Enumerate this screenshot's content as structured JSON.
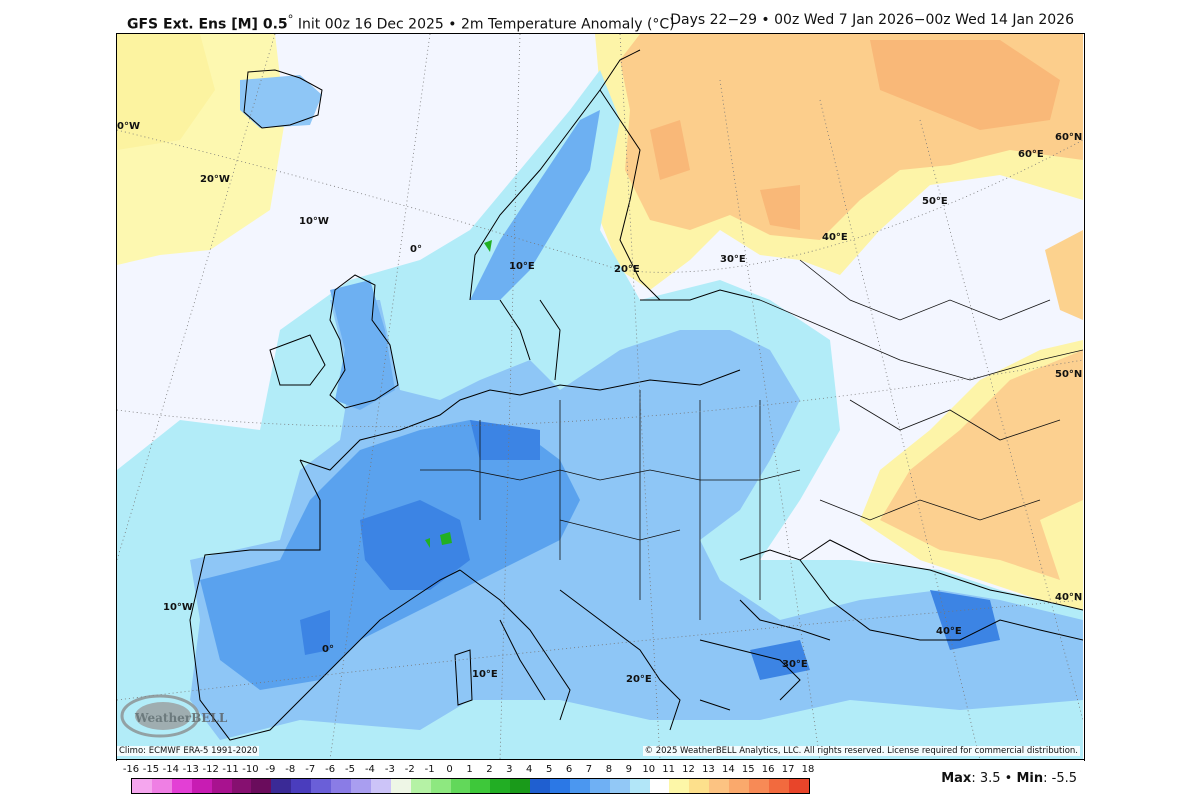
{
  "header": {
    "model": "GFS Ext.  Ens [M] 0.5",
    "degree": "°",
    "init": " Init 00z 16 Dec 2025 • 2m Temperature Anomaly (°C)",
    "valid": "Days 22−29 • 00z Wed 7 Jan 2026−00z Wed 14 Jan 2026"
  },
  "map": {
    "graticule_labels": [
      "0°W",
      "20°W",
      "10°W",
      "0°",
      "10°E",
      "20°E",
      "30°E",
      "40°E",
      "50°E",
      "60°E",
      "60°N",
      "50°N",
      "40°N",
      "10°W",
      "0°",
      "10°E",
      "20°E",
      "30°E",
      "40°E"
    ],
    "logo": "WeatherBELL Analytics LLC"
  },
  "footer": {
    "climo": "Climo: ECMWF ERA-5 1991-2020",
    "copyright": "© 2025 WeatherBELL Analytics, LLC. All rights reserved. License required for commercial distribution."
  },
  "colorbar": {
    "ticks": [
      "-16",
      "-15",
      "-14",
      "-13",
      "-12",
      "-11",
      "-10",
      "-9",
      "-8",
      "-7",
      "-6",
      "-5",
      "-4",
      "-3",
      "-2",
      "-1",
      "0",
      "1",
      "2",
      "3",
      "4",
      "5",
      "6",
      "7",
      "8",
      "9",
      "10",
      "11",
      "12",
      "13",
      "14",
      "15",
      "16",
      "17",
      "18"
    ],
    "colors": [
      "#f5a6ee",
      "#ef7fe4",
      "#e33fd5",
      "#c81cb3",
      "#a8128f",
      "#861070",
      "#6a0c5c",
      "#3a2a96",
      "#4a3dbd",
      "#6a5fd8",
      "#8a7ce6",
      "#a99ef0",
      "#ccc4f8",
      "#eef6e6",
      "#b5f2a5",
      "#8ee880",
      "#62d85a",
      "#3ec83a",
      "#22ae24",
      "#1a9a1a",
      "#1f5fd0",
      "#2b78e6",
      "#4b97f0",
      "#6fb0f4",
      "#92c8f6",
      "#b2e6f8",
      "#ffffff",
      "#fdf7a8",
      "#fde08c",
      "#fcc382",
      "#faa96c",
      "#f78a56",
      "#f26a3e",
      "#e8452a"
    ]
  },
  "stats": {
    "max_label": "Max",
    "max": "3.5",
    "sep": " • ",
    "min_label": "Min",
    "min": "-5.5"
  }
}
